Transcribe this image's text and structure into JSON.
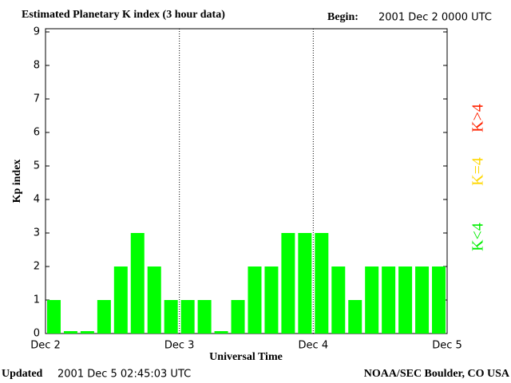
{
  "chart_data": {
    "type": "bar",
    "title": "Estimated Planetary K index (3 hour data)",
    "begin_label": "Begin:",
    "begin_value": "2001 Dec 2 0000 UTC",
    "ylabel": "Kp index",
    "xlabel": "Universal Time",
    "categories": [
      null,
      null,
      null,
      null,
      null,
      null,
      null,
      null,
      null,
      null,
      null,
      null,
      null,
      null,
      null,
      null,
      null,
      null,
      null,
      null,
      null,
      null,
      null,
      null
    ],
    "values": [
      1,
      0,
      0,
      1,
      2,
      3,
      2,
      1,
      1,
      1,
      0,
      1,
      2,
      2,
      3,
      3,
      3,
      2,
      1,
      2,
      2,
      2,
      2,
      2
    ],
    "color": "#00ff00",
    "ylim": [
      0,
      9
    ],
    "yticks": [
      0,
      1,
      2,
      3,
      4,
      5,
      6,
      7,
      8,
      9
    ],
    "xtick_labels": [
      "Dec 2",
      "Dec 3",
      "Dec 4",
      "Dec 5"
    ],
    "legend": [
      {
        "name": "K<4",
        "color": "#00ee00"
      },
      {
        "name": "K=4",
        "color": "#ffd700"
      },
      {
        "name": "K>4",
        "color": "#ff2200"
      }
    ],
    "updated_label": "Updated",
    "updated_value": "2001 Dec  5 02:45:03 UTC",
    "source": "NOAA/SEC Boulder, CO USA"
  }
}
